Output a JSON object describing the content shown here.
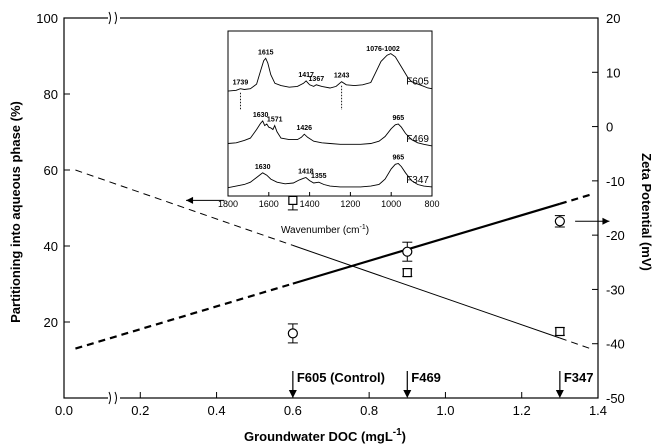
{
  "chart_data": {
    "type": "scatter",
    "xlabel_main": "Groundwater DOC (mgL",
    "xlabel_sup": "-1",
    "xlabel_close": ")",
    "ylabel_left": "Partitioning into aqueous phase (%)",
    "ylabel_right": "Zeta Potential (mV)",
    "xlim": [
      0.0,
      1.4
    ],
    "ylim_left": [
      0,
      100
    ],
    "ylim_right": [
      -50,
      20
    ],
    "x_ticks": [
      "0.0",
      "0.2",
      "0.4",
      "0.6",
      "0.8",
      "1.0",
      "1.2",
      "1.4"
    ],
    "y_left_ticks": [
      "20",
      "40",
      "60",
      "80",
      "100"
    ],
    "y_right_ticks": [
      "-50",
      "-40",
      "-30",
      "-20",
      "-10",
      "0",
      "10",
      "20"
    ],
    "series": [
      {
        "marker": "circle",
        "x": [
          0.6,
          0.9,
          1.3
        ],
        "y_left": [
          17,
          38.5,
          46.5
        ],
        "err": [
          2.5,
          2.5,
          1.5
        ]
      },
      {
        "marker": "square",
        "x": [
          0.6,
          0.9,
          1.3
        ],
        "y_left": [
          52,
          33,
          17.5
        ],
        "err": [
          2.5,
          1.0,
          1.0
        ]
      }
    ],
    "fit_lines": [
      {
        "style": "thin",
        "from": [
          0.03,
          60
        ],
        "to": [
          1.38,
          13
        ]
      },
      {
        "style": "thick",
        "from": [
          0.03,
          13
        ],
        "to": [
          1.38,
          53.5
        ]
      }
    ],
    "sample_markers": [
      {
        "x": 0.6,
        "label": "F605 (Control)"
      },
      {
        "x": 0.9,
        "label": "F469"
      },
      {
        "x": 1.3,
        "label": "F347"
      }
    ],
    "inset": {
      "xlabel_main": "Wavenumber (cm",
      "xlabel_sup": "-1",
      "xlabel_close": ")",
      "xlim": [
        1800,
        800
      ],
      "x_ticks": [
        "1800",
        "1600",
        "1400",
        "1200",
        "1000",
        "800"
      ],
      "spectra": [
        {
          "name": "F605",
          "points": [
            [
              1800,
              14
            ],
            [
              1760,
              15
            ],
            [
              1739,
              17
            ],
            [
              1720,
              16
            ],
            [
              1690,
              17
            ],
            [
              1660,
              23
            ],
            [
              1640,
              40
            ],
            [
              1625,
              53
            ],
            [
              1615,
              56
            ],
            [
              1605,
              50
            ],
            [
              1590,
              35
            ],
            [
              1570,
              24
            ],
            [
              1540,
              21
            ],
            [
              1500,
              19
            ],
            [
              1460,
              20
            ],
            [
              1430,
              24
            ],
            [
              1417,
              27
            ],
            [
              1400,
              22
            ],
            [
              1380,
              20
            ],
            [
              1367,
              22
            ],
            [
              1340,
              20
            ],
            [
              1300,
              18
            ],
            [
              1270,
              20
            ],
            [
              1243,
              26
            ],
            [
              1220,
              22
            ],
            [
              1180,
              21
            ],
            [
              1140,
              22
            ],
            [
              1100,
              25
            ],
            [
              1076,
              38
            ],
            [
              1050,
              52
            ],
            [
              1020,
              60
            ],
            [
              1002,
              62
            ],
            [
              980,
              58
            ],
            [
              950,
              45
            ],
            [
              920,
              32
            ],
            [
              900,
              26
            ],
            [
              880,
              24
            ],
            [
              850,
              21
            ],
            [
              820,
              18
            ],
            [
              800,
              17
            ]
          ],
          "peak_labels": [
            {
              "x": 1739,
              "label": "1739"
            },
            {
              "x": 1615,
              "label": "1615"
            },
            {
              "x": 1417,
              "label": "1417"
            },
            {
              "x": 1367,
              "label": "1367"
            },
            {
              "x": 1243,
              "label": "1243"
            },
            {
              "x": 1040,
              "label": "1076-1002"
            }
          ]
        },
        {
          "name": "F469",
          "points": [
            [
              1800,
              7
            ],
            [
              1760,
              8
            ],
            [
              1720,
              11
            ],
            [
              1690,
              14
            ],
            [
              1660,
              25
            ],
            [
              1640,
              33
            ],
            [
              1630,
              36
            ],
            [
              1620,
              30
            ],
            [
              1610,
              32
            ],
            [
              1600,
              28
            ],
            [
              1590,
              27
            ],
            [
              1580,
              25
            ],
            [
              1571,
              30
            ],
            [
              1560,
              22
            ],
            [
              1540,
              14
            ],
            [
              1500,
              12
            ],
            [
              1460,
              12
            ],
            [
              1440,
              15
            ],
            [
              1426,
              19
            ],
            [
              1410,
              15
            ],
            [
              1380,
              10
            ],
            [
              1340,
              8
            ],
            [
              1300,
              7
            ],
            [
              1250,
              6
            ],
            [
              1200,
              6
            ],
            [
              1150,
              6
            ],
            [
              1100,
              7
            ],
            [
              1060,
              10
            ],
            [
              1030,
              16
            ],
            [
              1000,
              26
            ],
            [
              980,
              31
            ],
            [
              965,
              32
            ],
            [
              950,
              28
            ],
            [
              930,
              20
            ],
            [
              900,
              12
            ],
            [
              870,
              8
            ],
            [
              840,
              6
            ],
            [
              800,
              4
            ]
          ],
          "peak_labels": [
            {
              "x": 1640,
              "label": "1630"
            },
            {
              "x": 1571,
              "label": "1571"
            },
            {
              "x": 1426,
              "label": "1426"
            },
            {
              "x": 965,
              "label": "965"
            }
          ]
        },
        {
          "name": "F347",
          "points": [
            [
              1800,
              3
            ],
            [
              1760,
              5
            ],
            [
              1720,
              7
            ],
            [
              1690,
              10
            ],
            [
              1660,
              16
            ],
            [
              1640,
              20
            ],
            [
              1630,
              22
            ],
            [
              1610,
              19
            ],
            [
              1590,
              14
            ],
            [
              1560,
              10
            ],
            [
              1520,
              8
            ],
            [
              1480,
              9
            ],
            [
              1450,
              13
            ],
            [
              1430,
              15
            ],
            [
              1418,
              16
            ],
            [
              1400,
              12
            ],
            [
              1380,
              9
            ],
            [
              1355,
              10
            ],
            [
              1330,
              7
            ],
            [
              1300,
              5
            ],
            [
              1250,
              4
            ],
            [
              1200,
              4
            ],
            [
              1150,
              4
            ],
            [
              1100,
              5
            ],
            [
              1060,
              7
            ],
            [
              1030,
              14
            ],
            [
              1000,
              27
            ],
            [
              980,
              33
            ],
            [
              965,
              34
            ],
            [
              950,
              30
            ],
            [
              930,
              22
            ],
            [
              900,
              12
            ],
            [
              870,
              7
            ],
            [
              840,
              5
            ],
            [
              800,
              4
            ]
          ],
          "peak_labels": [
            {
              "x": 1630,
              "label": "1630"
            },
            {
              "x": 1418,
              "label": "1418"
            },
            {
              "x": 1355,
              "label": "1355"
            },
            {
              "x": 965,
              "label": "965"
            }
          ]
        }
      ]
    }
  }
}
